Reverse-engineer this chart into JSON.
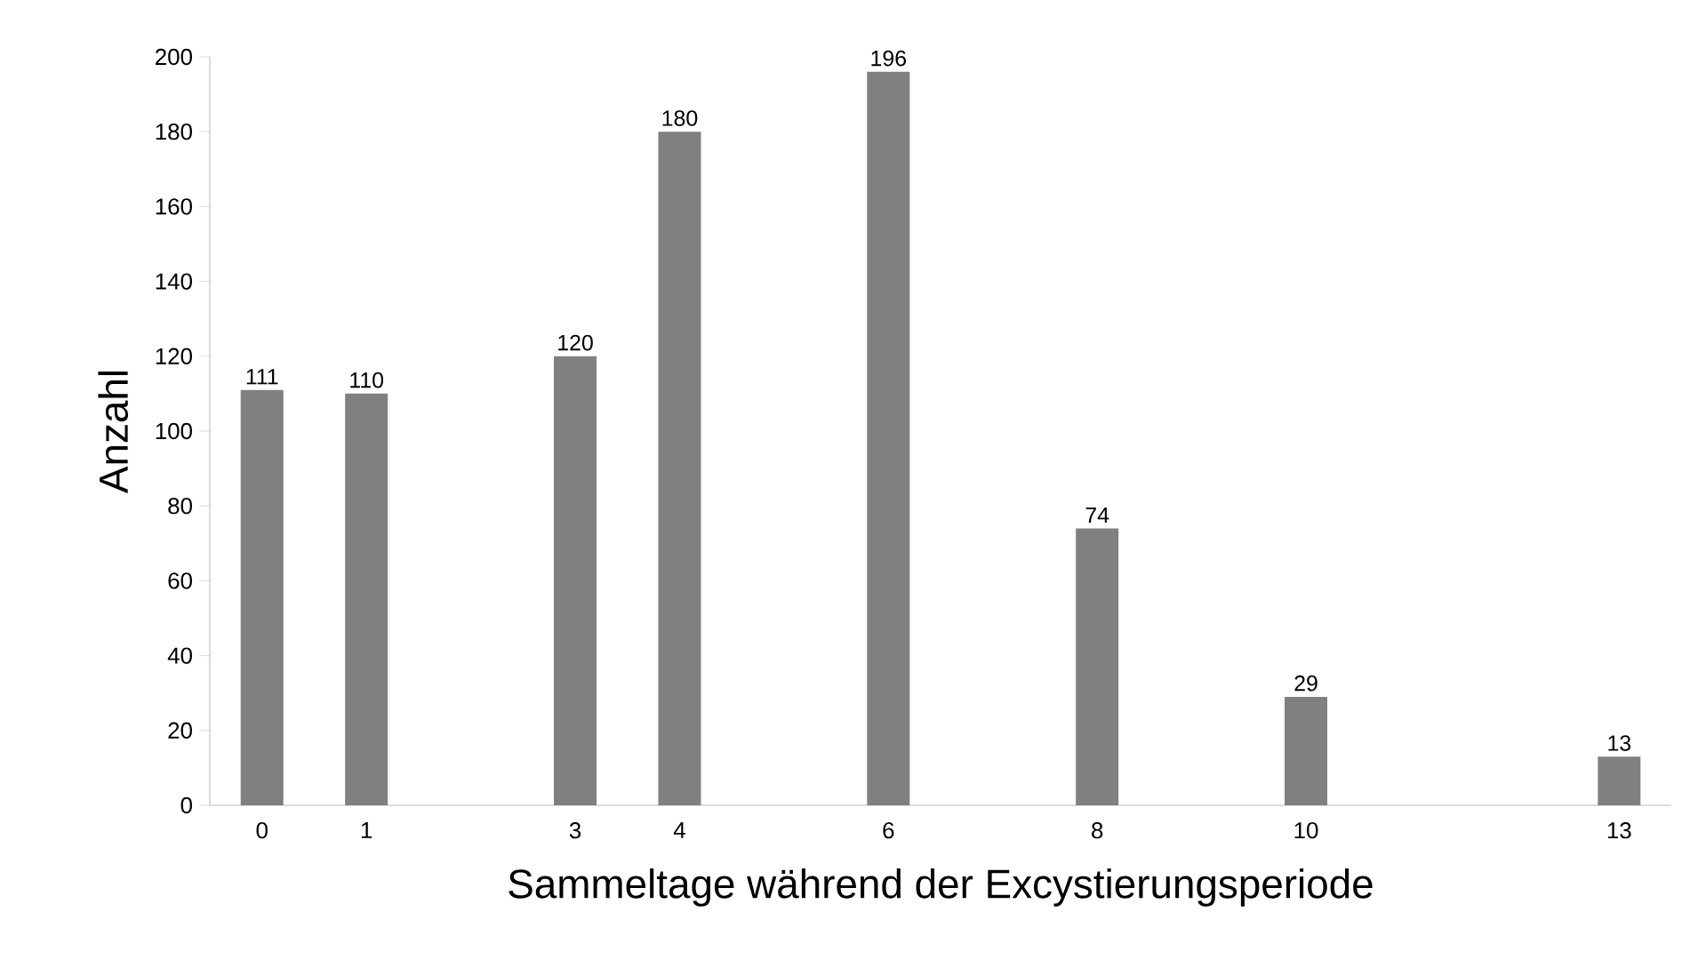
{
  "chart_data": {
    "type": "bar",
    "xlabel": "Sammeltage während der Excystierungsperiode",
    "ylabel": "Anzahl",
    "categories": [
      "0",
      "1",
      null,
      "3",
      "4",
      null,
      "6",
      null,
      "8",
      null,
      "10",
      null,
      null,
      "13"
    ],
    "values": [
      111,
      110,
      null,
      120,
      180,
      null,
      196,
      null,
      74,
      null,
      29,
      null,
      null,
      13
    ],
    "color": "#808080",
    "ylim": [
      0,
      200
    ],
    "yticks": [
      0,
      20,
      40,
      60,
      80,
      100,
      120,
      140,
      160,
      180,
      200
    ],
    "data_labels": true,
    "grid": false
  }
}
